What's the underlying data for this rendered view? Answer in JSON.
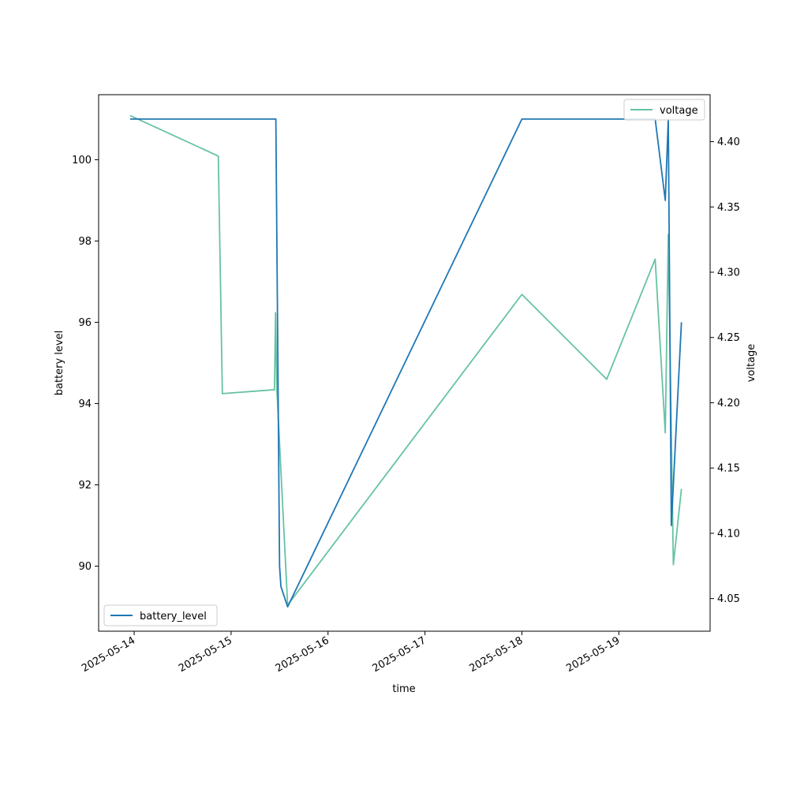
{
  "chart_data": {
    "type": "line",
    "title": "",
    "xlabel": "time",
    "ylabel_left": "battery level",
    "ylabel_right": "voltage",
    "x_tick_labels": [
      "2025-05-14",
      "2025-05-15",
      "2025-05-16",
      "2025-05-17",
      "2025-05-18",
      "2025-05-19"
    ],
    "xlim": [
      "2025-05-13 15:12",
      "2025-05-19 22:36"
    ],
    "left_yticks": [
      90,
      92,
      94,
      96,
      98,
      100
    ],
    "left_ylim": [
      88.4,
      101.6
    ],
    "right_yticks": [
      4.05,
      4.1,
      4.15,
      4.2,
      4.25,
      4.3,
      4.35,
      4.4
    ],
    "right_ylim": [
      4.025,
      4.436
    ],
    "grid": false,
    "series": [
      {
        "name": "battery_level",
        "axis": "left",
        "color": "#1f77b4",
        "legend_position": "lower left",
        "points": [
          [
            "2025-05-13 23:00",
            101
          ],
          [
            "2025-05-15 11:05",
            101
          ],
          [
            "2025-05-15 12:00",
            90
          ],
          [
            "2025-05-15 12:20",
            89.5
          ],
          [
            "2025-05-15 14:00",
            89
          ],
          [
            "2025-05-18 00:00",
            101
          ],
          [
            "2025-05-19 09:00",
            101
          ],
          [
            "2025-05-19 11:30",
            99
          ],
          [
            "2025-05-19 12:15",
            101
          ],
          [
            "2025-05-19 13:00",
            91
          ],
          [
            "2025-05-19 15:30",
            96
          ]
        ]
      },
      {
        "name": "voltage",
        "axis": "right",
        "color": "#66c2a5",
        "legend_position": "upper right",
        "points": [
          [
            "2025-05-13 23:00",
            4.42
          ],
          [
            "2025-05-14 20:50",
            4.389
          ],
          [
            "2025-05-14 21:50",
            4.207
          ],
          [
            "2025-05-15 10:45",
            4.21
          ],
          [
            "2025-05-15 11:00",
            4.269
          ],
          [
            "2025-05-15 11:20",
            4.21
          ],
          [
            "2025-05-15 14:00",
            4.045
          ],
          [
            "2025-05-18 00:00",
            4.283
          ],
          [
            "2025-05-18 21:00",
            4.218
          ],
          [
            "2025-05-19 09:00",
            4.31
          ],
          [
            "2025-05-19 11:30",
            4.177
          ],
          [
            "2025-05-19 12:15",
            4.329
          ],
          [
            "2025-05-19 13:30",
            4.076
          ],
          [
            "2025-05-19 15:30",
            4.134
          ]
        ]
      }
    ]
  }
}
